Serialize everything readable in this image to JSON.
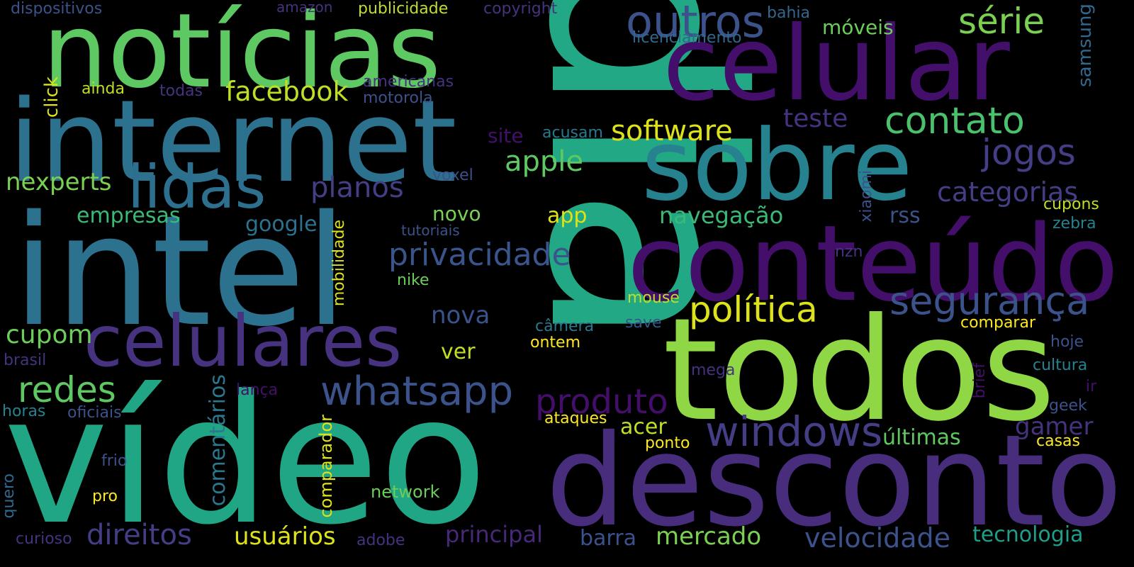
{
  "words": {
    "dia": "dia",
    "video": "vídeo",
    "todos": "todos",
    "intel": "intel",
    "desconto": "desconto",
    "internet": "internet",
    "noticias": "notícias",
    "conteudo": "conteúdo",
    "celular": "celular",
    "sobre": "sobre",
    "celulares": "celulares",
    "lidas": "lidas",
    "outros": "outros",
    "windows": "windows",
    "whatsapp": "whatsapp",
    "politica": "política",
    "seguranca": "segurança",
    "contato": "contato",
    "jogos": "jogos",
    "serie": "série",
    "software": "software",
    "facebook": "facebook",
    "redes": "redes",
    "produto": "produto",
    "privacidade": "privacidade",
    "direitos": "direitos",
    "categorias": "categorias",
    "velocidade": "velocidade",
    "planos": "planos",
    "apple": "apple",
    "mercado": "mercado",
    "usuarios": "usuários",
    "principal": "principal",
    "teste": "teste",
    "gamer": "gamer",
    "navegacao": "navegação",
    "nexperts": "nexperts",
    "nova": "nova",
    "tecnologia": "tecnologia",
    "cupom": "cupom",
    "empresas": "empresas",
    "comentarios": "comentários",
    "google": "google",
    "ultimas": "últimas",
    "barra": "barra",
    "acer": "acer",
    "novo": "novo",
    "app": "app",
    "ver": "ver",
    "moveis": "móveis",
    "samsung": "samsung",
    "site": "site",
    "rss": "rss",
    "comparador": "comparador",
    "mobilidade": "mobilidade",
    "network": "network",
    "click": "click",
    "americanas": "americanas",
    "licenciamento": "licenciamento",
    "publicidade": "publicidade",
    "copyright": "copyright",
    "dispositivos": "dispositivos",
    "amazon": "amazon",
    "bahia": "bahia",
    "motorola": "motorola",
    "ainda": "ainda",
    "todas": "todas",
    "acusam": "acusam",
    "voxel": "voxel",
    "tutoriais": "tutoriais",
    "xiaomi": "xiaomi",
    "nzn": "nzn",
    "nike": "nike",
    "mouse": "mouse",
    "camera": "câmera",
    "ontem": "ontem",
    "save": "save",
    "comparar": "comparar",
    "cupons": "cupons",
    "zebra": "zebra",
    "hoje": "hoje",
    "cultura": "cultura",
    "brief": "brief",
    "ir": "ir",
    "geek": "geek",
    "casas": "casas",
    "mega": "mega",
    "ataques": "ataques",
    "ponto": "ponto",
    "lanca": "lança",
    "horas": "horas",
    "oficiais": "oficiais",
    "frio": "frio",
    "quero": "quero",
    "pro": "pro",
    "curioso": "curioso",
    "adobe": "adobe",
    "brasil": "brasil"
  },
  "colors": {
    "background": "#000000",
    "palette": [
      "#440154",
      "#46327e",
      "#365c8d",
      "#277f8e",
      "#1fa187",
      "#4ac16d",
      "#a0da39",
      "#fde725"
    ]
  }
}
